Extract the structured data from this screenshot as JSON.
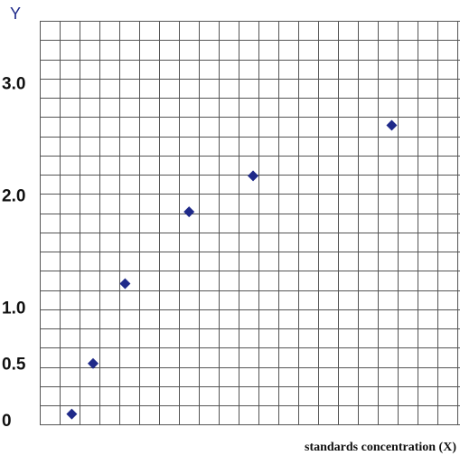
{
  "chart_data": {
    "type": "scatter",
    "title": "",
    "xlabel": "standards concentration (X)",
    "ylabel": "Y",
    "grid": true,
    "x": [
      0.5,
      1.5,
      3.0,
      6.0,
      9.0,
      15.5
    ],
    "y": [
      0.05,
      0.5,
      1.21,
      1.85,
      2.17,
      2.62
    ],
    "ylim": [
      -0.05,
      3.55
    ],
    "xlim": [
      -1.0,
      18.7
    ],
    "yticks": [
      {
        "value": 0,
        "label": "0"
      },
      {
        "value": 0.5,
        "label": "0.5"
      },
      {
        "value": 1.0,
        "label": "1.0"
      },
      {
        "value": 2.0,
        "label": "2.0"
      },
      {
        "value": 3.0,
        "label": "3.0"
      }
    ],
    "marker_color": "#1f2a8a"
  }
}
